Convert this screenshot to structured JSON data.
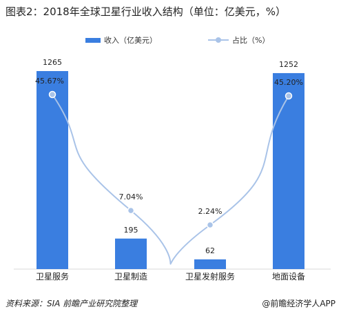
{
  "title": "图表2：2018年全球卫星行业收入结构（单位：亿美元，%）",
  "source": "资料来源：SIA 前瞻产业研究院整理",
  "brand": "@前瞻经济学人APP",
  "colors": {
    "bar": "#3a7ee0",
    "line": "#a9c3e8",
    "marker": "#a9c3e8"
  },
  "chart_data": {
    "type": "bar",
    "categories": [
      "卫星服务",
      "卫星制造",
      "卫星发射服务",
      "地面设备"
    ],
    "series": [
      {
        "name": "收入（亿美元）",
        "type": "bar",
        "axis": "left",
        "values": [
          1265,
          195,
          62,
          1252
        ],
        "labels": [
          "1265",
          "195",
          "62",
          "1252"
        ]
      },
      {
        "name": "占比（%）",
        "type": "line",
        "axis": "right",
        "smooth": true,
        "values": [
          45.67,
          7.04,
          2.24,
          45.2
        ],
        "labels": [
          "45.67%",
          "7.04%",
          "2.24%",
          "45.20%"
        ]
      }
    ],
    "ylim_left": [
      0,
      1265
    ],
    "ylim_right": [
      0,
      45.67
    ],
    "legend_position": "top",
    "grid": false
  }
}
